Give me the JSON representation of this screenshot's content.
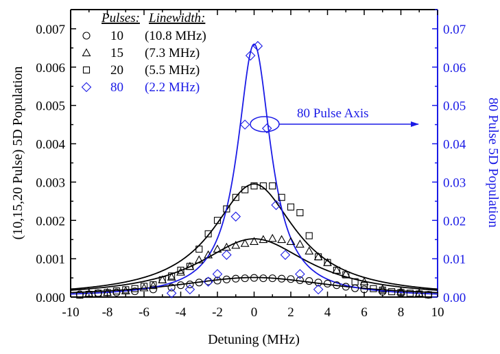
{
  "chart_data": {
    "type": "scatter",
    "xlabel": "Detuning (MHz)",
    "ylabel_left": "(10,15,20 Pulse)  5D Population",
    "ylabel_right": "80 Pulse 5D Population",
    "xlim": [
      -10,
      10
    ],
    "ylim_left": [
      0,
      0.0075
    ],
    "ylim_right": [
      0,
      0.075
    ],
    "x_ticks": [
      "-10",
      "-8",
      "-6",
      "-4",
      "-2",
      "0",
      "2",
      "4",
      "6",
      "8",
      "10"
    ],
    "y_left_ticks": [
      "0.000",
      "0.001",
      "0.002",
      "0.003",
      "0.004",
      "0.005",
      "0.006",
      "0.007"
    ],
    "y_right_ticks": [
      "0.00",
      "0.01",
      "0.02",
      "0.03",
      "0.04",
      "0.05",
      "0.06",
      "0.07"
    ],
    "legend": {
      "header_pulses": "Pulses:",
      "header_linewidth": "Linewidth:",
      "entries": [
        {
          "pulses": "10",
          "linewidth": "(10.8 MHz)",
          "marker": "circle",
          "color": "#000000"
        },
        {
          "pulses": "15",
          "linewidth": "(7.3  MHz)",
          "marker": "triangle",
          "color": "#000000"
        },
        {
          "pulses": "20",
          "linewidth": "(5.5  MHz)",
          "marker": "square",
          "color": "#000000"
        },
        {
          "pulses": "80",
          "linewidth": "(2.2  MHz)",
          "marker": "diamond",
          "color": "#1a1ae6"
        }
      ]
    },
    "annotation": "80 Pulse Axis",
    "series": [
      {
        "name": "10 pulses",
        "axis": "left",
        "marker": "circle",
        "color": "#000000",
        "fit_peak": 0.00051,
        "fit_fwhm": 10.8,
        "x": [
          -9.5,
          -8.5,
          -7.5,
          -6.5,
          -5.5,
          -4.5,
          -4,
          -3.5,
          -3,
          -2.5,
          -2,
          -1.5,
          -1,
          -0.5,
          0,
          0.5,
          1,
          1.5,
          2,
          2.5,
          3,
          3.5,
          4,
          4.5,
          5,
          5.5,
          6,
          7,
          8,
          9.5
        ],
        "y": [
          7e-05,
          0.0001,
          0.00012,
          0.00015,
          0.0002,
          0.00025,
          0.00031,
          0.00033,
          0.00038,
          0.00041,
          0.00043,
          0.00046,
          0.00048,
          0.00049,
          0.0005,
          0.00049,
          0.00049,
          0.00048,
          0.00047,
          0.00044,
          0.00042,
          0.00038,
          0.00035,
          0.00031,
          0.00027,
          0.00023,
          0.0002,
          0.00014,
          0.0001,
          6e-05
        ]
      },
      {
        "name": "15 pulses",
        "axis": "left",
        "marker": "triangle",
        "color": "#000000",
        "fit_peak": 0.00152,
        "fit_fwhm": 7.3,
        "x": [
          -9,
          -8,
          -7,
          -6,
          -5.5,
          -5,
          -4.5,
          -4,
          -3.5,
          -3,
          -2.5,
          -2,
          -1.5,
          -1,
          -0.5,
          0,
          0.5,
          1,
          1.5,
          2,
          2.5,
          3,
          3.5,
          4,
          4.5,
          5,
          6,
          7,
          8,
          9
        ],
        "y": [
          0.0001,
          0.00012,
          0.00016,
          0.00024,
          0.0003,
          0.00045,
          0.00052,
          0.00065,
          0.0008,
          0.00097,
          0.0011,
          0.00125,
          0.0013,
          0.00135,
          0.0014,
          0.00145,
          0.0015,
          0.00153,
          0.0015,
          0.00145,
          0.00138,
          0.0012,
          0.00105,
          0.0009,
          0.0007,
          0.0006,
          0.0004,
          0.00021,
          0.00015,
          0.0001
        ]
      },
      {
        "name": "20 pulses",
        "axis": "left",
        "marker": "square",
        "color": "#000000",
        "fit_peak": 0.00295,
        "fit_fwhm": 5.5,
        "x": [
          -9.5,
          -9,
          -8.5,
          -8,
          -7.5,
          -7,
          -6.5,
          -6,
          -5.5,
          -5,
          -4.5,
          -4,
          -3.5,
          -3,
          -2.5,
          -2,
          -1.5,
          -1,
          -0.5,
          0,
          0.5,
          1,
          1.5,
          2,
          2.5,
          3,
          3.5,
          4,
          4.5,
          5,
          5.5,
          6,
          6.5,
          7,
          7.5,
          8,
          8.5,
          9,
          9.5
        ],
        "y": [
          5e-05,
          7e-05,
          0.0001,
          0.00012,
          0.00016,
          0.00019,
          0.00022,
          0.00028,
          0.00032,
          0.00045,
          0.00055,
          0.0007,
          0.0008,
          0.00125,
          0.00165,
          0.002,
          0.0023,
          0.0026,
          0.0028,
          0.0029,
          0.0029,
          0.0029,
          0.0026,
          0.00235,
          0.0022,
          0.0016,
          0.00105,
          0.0009,
          0.0007,
          0.00058,
          0.0004,
          0.0003,
          0.00022,
          0.00018,
          0.00014,
          0.00012,
          0.0001,
          8e-05,
          6e-05
        ]
      },
      {
        "name": "80 pulses",
        "axis": "right",
        "marker": "diamond",
        "color": "#1a1ae6",
        "fit_peak": 0.066,
        "fit_fwhm": 2.2,
        "x": [
          -4.5,
          -3.5,
          -2.5,
          -2,
          -1.5,
          -1,
          -0.5,
          -0.2,
          0.2,
          0.7,
          1.2,
          1.7,
          2.5,
          3.5
        ],
        "y": [
          0.001,
          0.002,
          0.004,
          0.006,
          0.011,
          0.021,
          0.045,
          0.063,
          0.0655,
          0.044,
          0.024,
          0.011,
          0.006,
          0.002
        ]
      }
    ]
  }
}
